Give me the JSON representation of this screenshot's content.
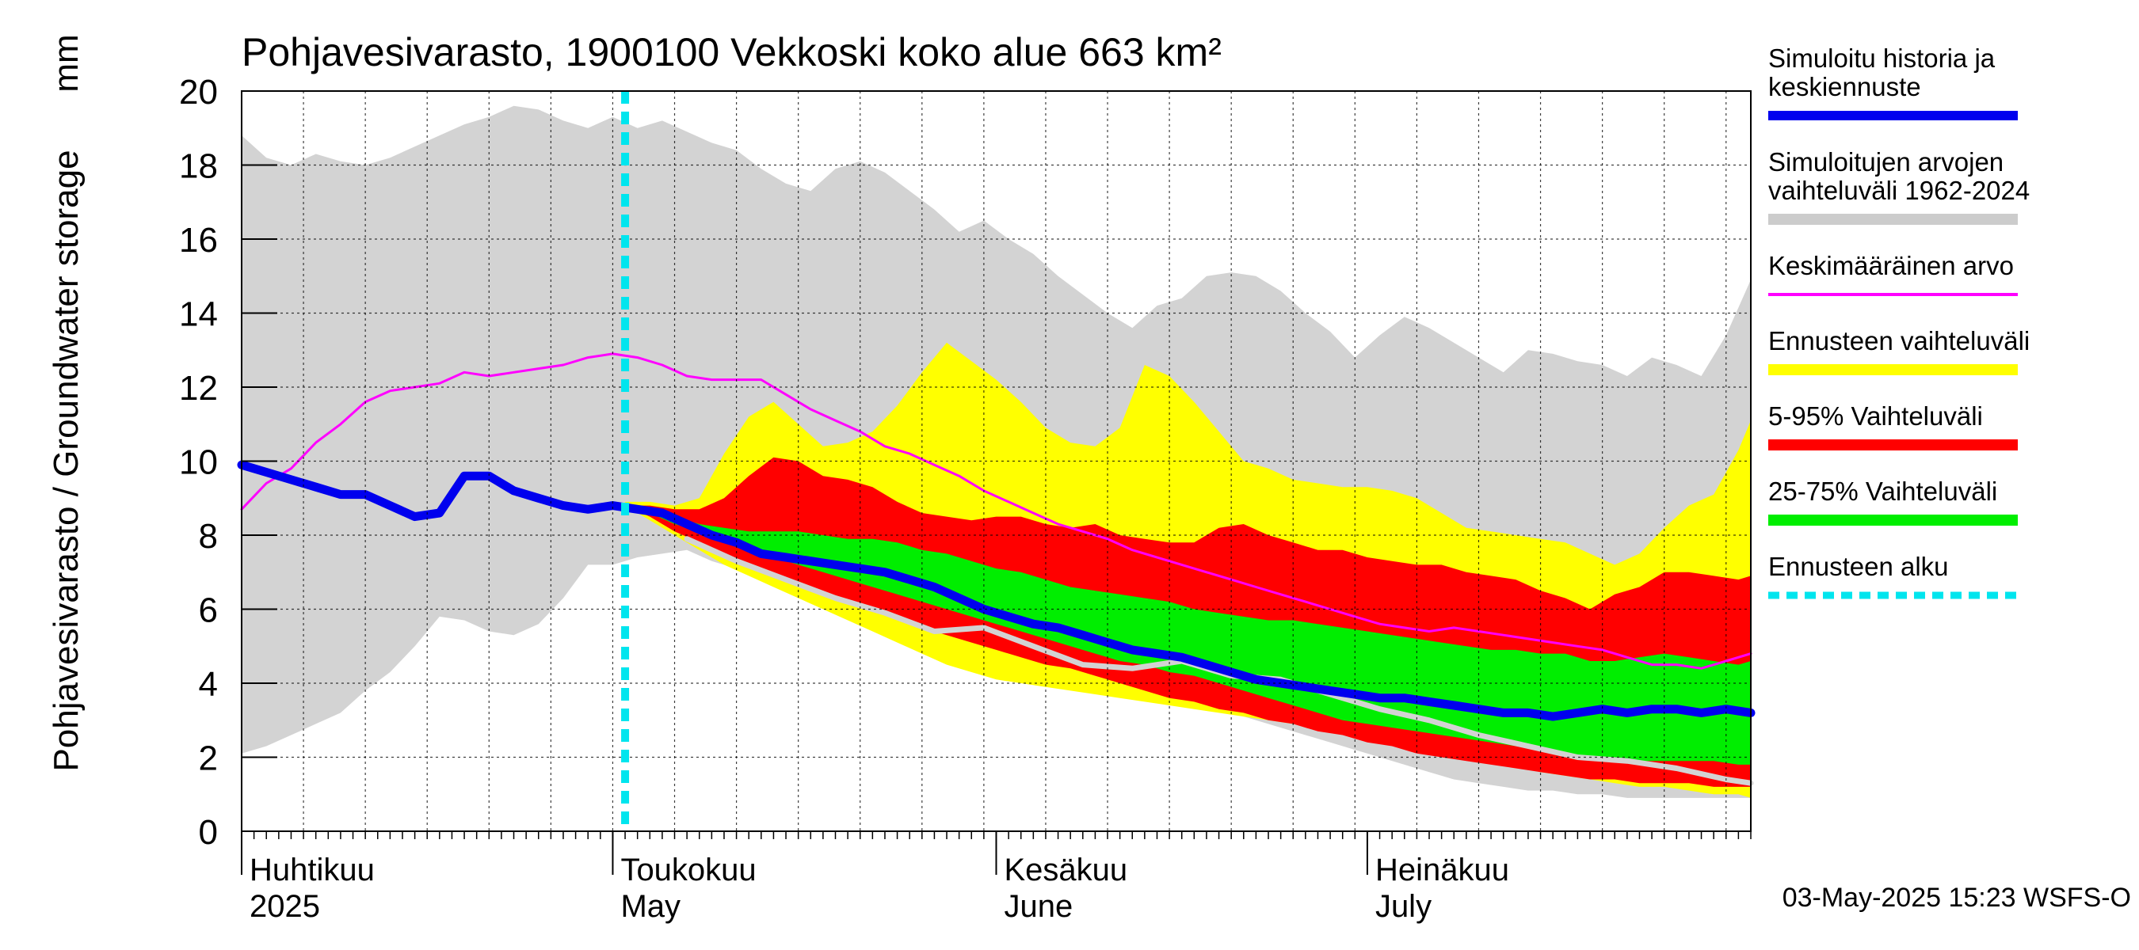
{
  "chart_data": {
    "type": "area",
    "title": "Pohjavesivarasto, 1900100 Vekkoski koko alue 663 km²",
    "ylabel": "Pohjavesivarasto / Groundwater storage",
    "yunit": "mm",
    "ylim": [
      0,
      20
    ],
    "yticks": [
      0,
      2,
      4,
      6,
      8,
      10,
      12,
      14,
      16,
      18,
      20
    ],
    "grid": true,
    "x_range_days": [
      0,
      122
    ],
    "x_start_date": "2025-04-01",
    "month_labels": [
      {
        "day": 0,
        "line1": "Huhtikuu",
        "line2": "2025"
      },
      {
        "day": 30,
        "line1": "Toukokuu",
        "line2": "May"
      },
      {
        "day": 61,
        "line1": "Kesäkuu",
        "line2": "June"
      },
      {
        "day": 91,
        "line1": "Heinäkuu",
        "line2": "July"
      }
    ],
    "forecast_start_day": 31,
    "legend": [
      {
        "label": "Simuloitu historia ja keskiennuste",
        "lines": [
          "Simuloitu historia ja",
          "keskiennuste"
        ],
        "color": "#0000ee",
        "style": "thick"
      },
      {
        "label": "Simuloitujen arvojen vaihteluväli 1962-2024",
        "lines": [
          "Simuloitujen arvojen",
          "vaihteluväli 1962-2024"
        ],
        "color": "#cccccc",
        "style": "band"
      },
      {
        "label": "Keskimääräinen arvo",
        "lines": [
          "Keskimääräinen arvo"
        ],
        "color": "#ff00ff",
        "style": "thin"
      },
      {
        "label": "Ennusteen vaihteluväli",
        "lines": [
          "Ennusteen vaihteluväli"
        ],
        "color": "#ffff00",
        "style": "band"
      },
      {
        "label": "5-95% Vaihteluväli",
        "lines": [
          "5-95% Vaihteluväli"
        ],
        "color": "#ff0000",
        "style": "band"
      },
      {
        "label": "25-75% Vaihteluväli",
        "lines": [
          "25-75% Vaihteluväli"
        ],
        "color": "#00ee00",
        "style": "band"
      },
      {
        "label": "Ennusteen alku",
        "lines": [
          "Ennusteen alku"
        ],
        "color": "#00e5ee",
        "style": "dotted"
      }
    ],
    "footer": "03-May-2025 15:23 WSFS-O",
    "series": [
      {
        "name": "Simuloitujen arvojen vaihteluväli 1962-2024",
        "kind": "band",
        "color": "#d3d3d3",
        "x": [
          0,
          2,
          4,
          6,
          8,
          10,
          12,
          14,
          16,
          18,
          20,
          22,
          24,
          26,
          28,
          30,
          32,
          34,
          36,
          38,
          40,
          42,
          44,
          46,
          48,
          50,
          52,
          54,
          56,
          58,
          60,
          62,
          64,
          66,
          68,
          70,
          72,
          74,
          76,
          78,
          80,
          82,
          84,
          86,
          88,
          90,
          92,
          94,
          96,
          98,
          100,
          102,
          104,
          106,
          108,
          110,
          112,
          114,
          116,
          118,
          120,
          122
        ],
        "lo": [
          2.1,
          2.3,
          2.6,
          2.9,
          3.2,
          3.8,
          4.3,
          5.0,
          5.8,
          5.7,
          5.4,
          5.3,
          5.6,
          6.3,
          7.2,
          7.2,
          7.4,
          7.5,
          7.6,
          7.3,
          7.1,
          7.5,
          7.0,
          6.5,
          6.0,
          6.1,
          5.8,
          5.5,
          5.3,
          5.1,
          5.0,
          4.7,
          4.5,
          4.4,
          4.3,
          4.2,
          4.0,
          3.8,
          3.6,
          3.4,
          3.2,
          3.0,
          2.8,
          2.6,
          2.4,
          2.2,
          2.0,
          1.8,
          1.6,
          1.4,
          1.3,
          1.2,
          1.1,
          1.1,
          1.0,
          1.0,
          0.9,
          0.9,
          0.9,
          0.9,
          0.9,
          0.9
        ],
        "hi": [
          18.8,
          18.2,
          18.0,
          18.3,
          18.1,
          18.0,
          18.2,
          18.5,
          18.8,
          19.1,
          19.3,
          19.6,
          19.5,
          19.2,
          19.0,
          19.3,
          19.0,
          19.2,
          18.9,
          18.6,
          18.4,
          17.9,
          17.5,
          17.3,
          17.9,
          18.1,
          17.8,
          17.3,
          16.8,
          16.2,
          16.5,
          16.0,
          15.6,
          15.0,
          14.5,
          14.0,
          13.6,
          14.2,
          14.4,
          15.0,
          15.1,
          15.0,
          14.6,
          14.0,
          13.5,
          12.8,
          13.4,
          13.9,
          13.6,
          13.2,
          12.8,
          12.4,
          13.0,
          12.9,
          12.7,
          12.6,
          12.3,
          12.8,
          12.6,
          12.3,
          13.4,
          14.9
        ]
      },
      {
        "name": "Ennusteen vaihteluväli",
        "kind": "band",
        "color": "#ffff00",
        "x": [
          31,
          33,
          35,
          37,
          39,
          41,
          43,
          45,
          47,
          49,
          51,
          53,
          55,
          57,
          59,
          61,
          63,
          65,
          67,
          69,
          71,
          73,
          75,
          77,
          79,
          81,
          83,
          85,
          87,
          89,
          91,
          93,
          95,
          97,
          99,
          101,
          103,
          105,
          107,
          109,
          111,
          113,
          115,
          117,
          119,
          121,
          122
        ],
        "lo": [
          8.8,
          8.4,
          8.0,
          7.6,
          7.2,
          6.9,
          6.6,
          6.3,
          6.0,
          5.7,
          5.4,
          5.1,
          4.8,
          4.5,
          4.3,
          4.1,
          4.0,
          3.9,
          3.8,
          3.7,
          3.6,
          3.5,
          3.4,
          3.3,
          3.2,
          3.1,
          3.0,
          2.9,
          2.8,
          2.7,
          2.6,
          2.5,
          2.4,
          2.2,
          2.1,
          1.9,
          1.8,
          1.6,
          1.5,
          1.4,
          1.3,
          1.2,
          1.2,
          1.1,
          1.0,
          1.0,
          0.9
        ],
        "hi": [
          8.9,
          8.9,
          8.8,
          9.0,
          10.2,
          11.2,
          11.6,
          11.0,
          10.4,
          10.5,
          10.8,
          11.5,
          12.4,
          13.2,
          12.7,
          12.2,
          11.6,
          10.9,
          10.5,
          10.4,
          10.9,
          12.6,
          12.3,
          11.6,
          10.8,
          10.0,
          9.8,
          9.5,
          9.4,
          9.3,
          9.3,
          9.2,
          9.0,
          8.6,
          8.2,
          8.1,
          8.0,
          7.9,
          7.8,
          7.5,
          7.2,
          7.5,
          8.2,
          8.8,
          9.1,
          10.3,
          11.1
        ]
      },
      {
        "name": "5-95% Vaihteluväli",
        "kind": "band",
        "color": "#ff0000",
        "x": [
          31,
          33,
          35,
          37,
          39,
          41,
          43,
          45,
          47,
          49,
          51,
          53,
          55,
          57,
          59,
          61,
          63,
          65,
          67,
          69,
          71,
          73,
          75,
          77,
          79,
          81,
          83,
          85,
          87,
          89,
          91,
          93,
          95,
          97,
          99,
          101,
          103,
          105,
          107,
          109,
          111,
          113,
          115,
          117,
          119,
          121,
          122
        ],
        "lo": [
          8.8,
          8.5,
          8.1,
          7.8,
          7.5,
          7.2,
          7.0,
          6.7,
          6.5,
          6.2,
          6.0,
          5.8,
          5.5,
          5.3,
          5.1,
          4.9,
          4.7,
          4.5,
          4.4,
          4.2,
          4.0,
          3.8,
          3.6,
          3.5,
          3.3,
          3.2,
          3.0,
          2.9,
          2.7,
          2.6,
          2.4,
          2.3,
          2.1,
          2.0,
          1.9,
          1.8,
          1.7,
          1.6,
          1.5,
          1.4,
          1.4,
          1.3,
          1.3,
          1.3,
          1.2,
          1.2,
          1.2
        ],
        "hi": [
          8.8,
          8.8,
          8.7,
          8.7,
          9.0,
          9.6,
          10.1,
          10.0,
          9.6,
          9.5,
          9.3,
          8.9,
          8.6,
          8.5,
          8.4,
          8.5,
          8.5,
          8.3,
          8.2,
          8.3,
          8.0,
          7.9,
          7.8,
          7.8,
          8.2,
          8.3,
          8.0,
          7.8,
          7.6,
          7.6,
          7.4,
          7.3,
          7.2,
          7.2,
          7.0,
          6.9,
          6.8,
          6.5,
          6.3,
          6.0,
          6.4,
          6.6,
          7.0,
          7.0,
          6.9,
          6.8,
          6.9
        ]
      },
      {
        "name": "25-75% Vaihteluväli",
        "kind": "band",
        "color": "#00ee00",
        "x": [
          31,
          33,
          35,
          37,
          39,
          41,
          43,
          45,
          47,
          49,
          51,
          53,
          55,
          57,
          59,
          61,
          63,
          65,
          67,
          69,
          71,
          73,
          75,
          77,
          79,
          81,
          83,
          85,
          87,
          89,
          91,
          93,
          95,
          97,
          99,
          101,
          103,
          105,
          107,
          109,
          111,
          113,
          115,
          117,
          119,
          121,
          122
        ],
        "lo": [
          8.8,
          8.6,
          8.3,
          8.1,
          7.8,
          7.6,
          7.4,
          7.2,
          7.0,
          6.8,
          6.6,
          6.4,
          6.2,
          6.0,
          5.8,
          5.6,
          5.4,
          5.2,
          5.0,
          4.8,
          4.6,
          4.5,
          4.3,
          4.2,
          4.0,
          3.8,
          3.6,
          3.4,
          3.2,
          3.0,
          2.9,
          2.8,
          2.7,
          2.6,
          2.5,
          2.4,
          2.3,
          2.2,
          2.1,
          2.0,
          2.0,
          1.9,
          1.9,
          1.9,
          1.9,
          1.8,
          1.8
        ],
        "hi": [
          8.8,
          8.7,
          8.5,
          8.3,
          8.2,
          8.1,
          8.1,
          8.1,
          8.0,
          7.9,
          7.9,
          7.8,
          7.6,
          7.5,
          7.3,
          7.1,
          7.0,
          6.8,
          6.6,
          6.5,
          6.4,
          6.3,
          6.2,
          6.0,
          5.9,
          5.8,
          5.7,
          5.7,
          5.6,
          5.5,
          5.4,
          5.3,
          5.2,
          5.1,
          5.0,
          4.9,
          4.9,
          4.8,
          4.8,
          4.6,
          4.6,
          4.7,
          4.8,
          4.7,
          4.6,
          4.5,
          4.6
        ]
      },
      {
        "name": "Grey reference line",
        "kind": "line",
        "color": "#d3d3d3",
        "width": 7,
        "x": [
          36,
          40,
          44,
          48,
          52,
          56,
          60,
          64,
          68,
          72,
          76,
          80,
          84,
          88,
          92,
          96,
          100,
          104,
          108,
          112,
          116,
          120,
          122
        ],
        "y": [
          7.9,
          7.3,
          6.8,
          6.3,
          5.9,
          5.4,
          5.5,
          5.0,
          4.5,
          4.4,
          4.6,
          4.2,
          4.1,
          3.7,
          3.3,
          3.0,
          2.6,
          2.3,
          2.0,
          1.9,
          1.7,
          1.4,
          1.3
        ]
      },
      {
        "name": "Keskimääräinen arvo",
        "kind": "line",
        "color": "#ff00ff",
        "width": 3,
        "x": [
          0,
          2,
          4,
          6,
          8,
          10,
          12,
          14,
          16,
          18,
          20,
          22,
          24,
          26,
          28,
          30,
          32,
          34,
          36,
          38,
          40,
          42,
          44,
          46,
          48,
          50,
          52,
          54,
          56,
          58,
          60,
          62,
          64,
          66,
          68,
          70,
          72,
          74,
          76,
          78,
          80,
          82,
          84,
          86,
          88,
          90,
          92,
          94,
          96,
          98,
          100,
          102,
          104,
          106,
          108,
          110,
          112,
          114,
          116,
          118,
          120,
          122
        ],
        "y": [
          8.7,
          9.4,
          9.8,
          10.5,
          11.0,
          11.6,
          11.9,
          12.0,
          12.1,
          12.4,
          12.3,
          12.4,
          12.5,
          12.6,
          12.8,
          12.9,
          12.8,
          12.6,
          12.3,
          12.2,
          12.2,
          12.2,
          11.8,
          11.4,
          11.1,
          10.8,
          10.4,
          10.2,
          9.9,
          9.6,
          9.2,
          8.9,
          8.6,
          8.3,
          8.1,
          7.9,
          7.6,
          7.4,
          7.2,
          7.0,
          6.8,
          6.6,
          6.4,
          6.2,
          6.0,
          5.8,
          5.6,
          5.5,
          5.4,
          5.5,
          5.4,
          5.3,
          5.2,
          5.1,
          5.0,
          4.9,
          4.7,
          4.5,
          4.5,
          4.4,
          4.6,
          4.8
        ]
      },
      {
        "name": "Simuloitu historia ja keskiennuste",
        "kind": "line",
        "color": "#0000ee",
        "width": 11,
        "x": [
          0,
          2,
          4,
          6,
          8,
          10,
          12,
          14,
          16,
          18,
          20,
          22,
          24,
          26,
          28,
          30,
          32,
          34,
          36,
          38,
          40,
          42,
          44,
          46,
          48,
          50,
          52,
          54,
          56,
          58,
          60,
          62,
          64,
          66,
          68,
          70,
          72,
          74,
          76,
          78,
          80,
          82,
          84,
          86,
          88,
          90,
          92,
          94,
          96,
          98,
          100,
          102,
          104,
          106,
          108,
          110,
          112,
          114,
          116,
          118,
          120,
          122
        ],
        "y": [
          9.9,
          9.7,
          9.5,
          9.3,
          9.1,
          9.1,
          8.8,
          8.5,
          8.6,
          9.6,
          9.6,
          9.2,
          9.0,
          8.8,
          8.7,
          8.8,
          8.7,
          8.6,
          8.3,
          8.0,
          7.8,
          7.5,
          7.4,
          7.3,
          7.2,
          7.1,
          7.0,
          6.8,
          6.6,
          6.3,
          6.0,
          5.8,
          5.6,
          5.5,
          5.3,
          5.1,
          4.9,
          4.8,
          4.7,
          4.5,
          4.3,
          4.1,
          4.0,
          3.9,
          3.8,
          3.7,
          3.6,
          3.6,
          3.5,
          3.4,
          3.3,
          3.2,
          3.2,
          3.1,
          3.2,
          3.3,
          3.2,
          3.3,
          3.3,
          3.2,
          3.3,
          3.2
        ]
      }
    ]
  }
}
